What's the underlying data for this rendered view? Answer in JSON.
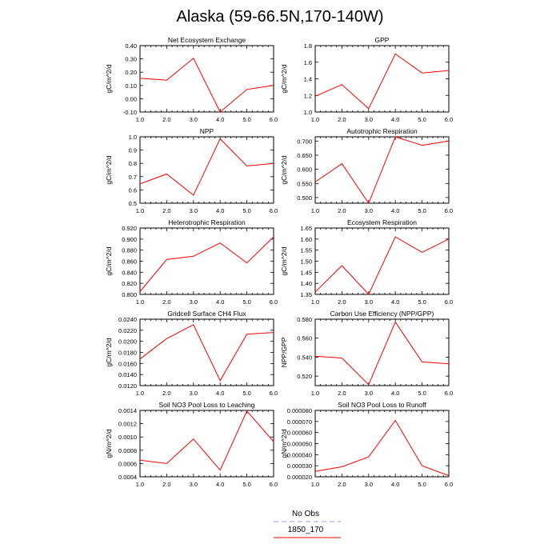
{
  "title": "Alaska (59-66.5N,170-140W)",
  "legend": [
    {
      "label": "No Obs",
      "color": "#9999ff",
      "dash": "dashed"
    },
    {
      "label": "1850_170",
      "color": "#ff0000",
      "dash": "solid"
    }
  ],
  "chart_data": [
    {
      "type": "line",
      "title": "Net Ecosystem Exchange",
      "ylabel": "gC/m^2/d",
      "x": [
        1,
        2,
        3,
        4,
        5,
        6
      ],
      "xticks": [
        "1.0",
        "2.0",
        "3.0",
        "4.0",
        "5.0",
        "6.0"
      ],
      "xlim": [
        1,
        6
      ],
      "ylim": [
        -0.1,
        0.4
      ],
      "yticks": [
        "-0.10",
        "0.00",
        "0.10",
        "0.20",
        "0.30",
        "0.40"
      ],
      "series": [
        {
          "name": "1850_170",
          "values": [
            0.155,
            0.14,
            0.305,
            -0.1,
            0.07,
            0.1
          ]
        }
      ]
    },
    {
      "type": "line",
      "title": "GPP",
      "ylabel": "gC/m^2/d",
      "x": [
        1,
        2,
        3,
        4,
        5,
        6
      ],
      "xticks": [
        "1.0",
        "2.0",
        "3.0",
        "4.0",
        "5.0",
        "6.0"
      ],
      "xlim": [
        1,
        6
      ],
      "ylim": [
        1.0,
        1.8
      ],
      "yticks": [
        "1.0",
        "1.2",
        "1.4",
        "1.6",
        "1.8"
      ],
      "series": [
        {
          "name": "1850_170",
          "values": [
            1.19,
            1.33,
            1.04,
            1.7,
            1.47,
            1.5
          ]
        }
      ]
    },
    {
      "type": "line",
      "title": "NPP",
      "ylabel": "gC/m^2/d",
      "x": [
        1,
        2,
        3,
        4,
        5,
        6
      ],
      "xticks": [
        "1.0",
        "2.0",
        "3.0",
        "4.0",
        "5.0",
        "6.0"
      ],
      "xlim": [
        1,
        6
      ],
      "ylim": [
        0.5,
        1.0
      ],
      "yticks": [
        "0.5",
        "0.6",
        "0.7",
        "0.8",
        "0.9",
        "1.0"
      ],
      "series": [
        {
          "name": "1850_170",
          "values": [
            0.645,
            0.72,
            0.56,
            0.985,
            0.78,
            0.8
          ]
        }
      ]
    },
    {
      "type": "line",
      "title": "Autotrophic Respiration",
      "ylabel": "gC/m^2/d",
      "x": [
        1,
        2,
        3,
        4,
        5,
        6
      ],
      "xticks": [
        "1.0",
        "2.0",
        "3.0",
        "4.0",
        "5.0",
        "6.0"
      ],
      "xlim": [
        1,
        6
      ],
      "ylim": [
        0.48,
        0.715
      ],
      "yticks": [
        "0.500",
        "0.550",
        "0.600",
        "0.650",
        "0.700"
      ],
      "series": [
        {
          "name": "1850_170",
          "values": [
            0.555,
            0.62,
            0.48,
            0.715,
            0.685,
            0.7
          ]
        }
      ]
    },
    {
      "type": "line",
      "title": "Heterotrophic Respiration",
      "ylabel": "gC/m^2/d",
      "x": [
        1,
        2,
        3,
        4,
        5,
        6
      ],
      "xticks": [
        "1.0",
        "2.0",
        "3.0",
        "4.0",
        "5.0",
        "6.0"
      ],
      "xlim": [
        1,
        6
      ],
      "ylim": [
        0.8,
        0.92
      ],
      "yticks": [
        "0.800",
        "0.820",
        "0.840",
        "0.860",
        "0.880",
        "0.900",
        "0.920"
      ],
      "series": [
        {
          "name": "1850_170",
          "values": [
            0.805,
            0.863,
            0.869,
            0.893,
            0.857,
            0.904
          ]
        }
      ]
    },
    {
      "type": "line",
      "title": "Ecosystem Respiration",
      "ylabel": "gC/m^2/d",
      "x": [
        1,
        2,
        3,
        4,
        5,
        6
      ],
      "xticks": [
        "1.0",
        "2.0",
        "3.0",
        "4.0",
        "5.0",
        "6.0"
      ],
      "xlim": [
        1,
        6
      ],
      "ylim": [
        1.35,
        1.65
      ],
      "yticks": [
        "1.35",
        "1.40",
        "1.45",
        "1.50",
        "1.55",
        "1.60",
        "1.65"
      ],
      "series": [
        {
          "name": "1850_170",
          "values": [
            1.36,
            1.48,
            1.35,
            1.61,
            1.54,
            1.6
          ]
        }
      ]
    },
    {
      "type": "line",
      "title": "Gridcell Surface CH4 Flux",
      "ylabel": "gC/m^2/d",
      "x": [
        1,
        2,
        3,
        4,
        5,
        6
      ],
      "xticks": [
        "1.0",
        "2.0",
        "3.0",
        "4.0",
        "5.0",
        "6.0"
      ],
      "xlim": [
        1,
        6
      ],
      "ylim": [
        0.012,
        0.024
      ],
      "yticks": [
        "0.0120",
        "0.0140",
        "0.0160",
        "0.0180",
        "0.0200",
        "0.0220",
        "0.0240"
      ],
      "series": [
        {
          "name": "1850_170",
          "values": [
            0.0168,
            0.0205,
            0.023,
            0.0129,
            0.0213,
            0.0216
          ]
        }
      ]
    },
    {
      "type": "line",
      "title": "Carbon Use Efficiency (NPP/GPP)",
      "ylabel": "NPP/GPP",
      "x": [
        1,
        2,
        3,
        4,
        5,
        6
      ],
      "xticks": [
        "1.0",
        "2.0",
        "3.0",
        "4.0",
        "5.0",
        "6.0"
      ],
      "xlim": [
        1,
        6
      ],
      "ylim": [
        0.51,
        0.58
      ],
      "yticks": [
        "0.520",
        "0.540",
        "0.560",
        "0.580"
      ],
      "series": [
        {
          "name": "1850_170",
          "values": [
            0.541,
            0.539,
            0.511,
            0.577,
            0.535,
            0.533
          ]
        }
      ]
    },
    {
      "type": "line",
      "title": "Soil NO3 Pool Loss to Leaching",
      "ylabel": "gN/m^2/d",
      "x": [
        1,
        2,
        3,
        4,
        5,
        6
      ],
      "xticks": [
        "1.0",
        "2.0",
        "3.0",
        "4.0",
        "5.0",
        "6.0"
      ],
      "xlim": [
        1,
        6
      ],
      "ylim": [
        0.0004,
        0.0014
      ],
      "yticks": [
        "0.0004",
        "0.0006",
        "0.0008",
        "0.0010",
        "0.0012",
        "0.0014"
      ],
      "series": [
        {
          "name": "1850_170",
          "values": [
            0.00065,
            0.0006,
            0.00097,
            0.0005,
            0.00139,
            0.00093
          ]
        }
      ]
    },
    {
      "type": "line",
      "title": "Soil NO3 Pool Loss to Runoff",
      "ylabel": "gN/m^2/d",
      "x": [
        1,
        2,
        3,
        4,
        5,
        6
      ],
      "xticks": [
        "1.0",
        "2.0",
        "3.0",
        "4.0",
        "5.0",
        "6.0"
      ],
      "xlim": [
        1,
        6
      ],
      "ylim": [
        2e-05,
        8e-05
      ],
      "yticks": [
        "0.000020",
        "0.000030",
        "0.000040",
        "0.000050",
        "0.000060",
        "0.000070",
        "0.000080"
      ],
      "series": [
        {
          "name": "1850_170",
          "values": [
            2.5e-05,
            2.9e-05,
            3.8e-05,
            7.1e-05,
            3e-05,
            2.1e-05
          ]
        }
      ]
    }
  ]
}
